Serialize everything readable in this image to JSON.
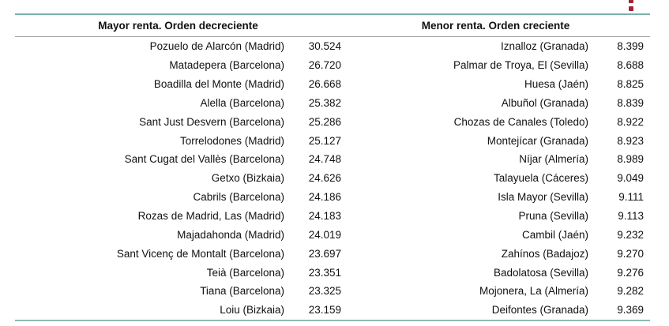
{
  "colors": {
    "rule_top": "#79b2ab",
    "rule_mid": "#9c9c9c",
    "rule_bottom": "#8ebab4",
    "menu_dots": "#a32138",
    "text": "#111111"
  },
  "menu": {
    "icon": "kebab-menu-icon"
  },
  "chart_data": {
    "type": "table",
    "tables": [
      {
        "header": "Mayor renta. Orden decreciente",
        "order": "descending",
        "rows": [
          {
            "municipality": "Pozuelo de Alarcón (Madrid)",
            "value_display": "30.524",
            "value": 30524
          },
          {
            "municipality": "Matadepera (Barcelona)",
            "value_display": "26.720",
            "value": 26720
          },
          {
            "municipality": "Boadilla del Monte (Madrid)",
            "value_display": "26.668",
            "value": 26668
          },
          {
            "municipality": "Alella (Barcelona)",
            "value_display": "25.382",
            "value": 25382
          },
          {
            "municipality": "Sant Just Desvern (Barcelona)",
            "value_display": "25.286",
            "value": 25286
          },
          {
            "municipality": "Torrelodones (Madrid)",
            "value_display": "25.127",
            "value": 25127
          },
          {
            "municipality": "Sant Cugat del Vallès (Barcelona)",
            "value_display": "24.748",
            "value": 24748
          },
          {
            "municipality": "Getxo (Bizkaia)",
            "value_display": "24.626",
            "value": 24626
          },
          {
            "municipality": "Cabrils (Barcelona)",
            "value_display": "24.186",
            "value": 24186
          },
          {
            "municipality": "Rozas de Madrid, Las (Madrid)",
            "value_display": "24.183",
            "value": 24183
          },
          {
            "municipality": "Majadahonda (Madrid)",
            "value_display": "24.019",
            "value": 24019
          },
          {
            "municipality": "Sant Vicenç de Montalt (Barcelona)",
            "value_display": "23.697",
            "value": 23697
          },
          {
            "municipality": "Teià (Barcelona)",
            "value_display": "23.351",
            "value": 23351
          },
          {
            "municipality": "Tiana (Barcelona)",
            "value_display": "23.325",
            "value": 23325
          },
          {
            "municipality": "Loiu (Bizkaia)",
            "value_display": "23.159",
            "value": 23159
          }
        ]
      },
      {
        "header": "Menor renta. Orden creciente",
        "order": "ascending",
        "rows": [
          {
            "municipality": "Iznalloz (Granada)",
            "value_display": "8.399",
            "value": 8399
          },
          {
            "municipality": "Palmar de Troya, El (Sevilla)",
            "value_display": "8.688",
            "value": 8688
          },
          {
            "municipality": "Huesa (Jaén)",
            "value_display": "8.825",
            "value": 8825
          },
          {
            "municipality": "Albuñol (Granada)",
            "value_display": "8.839",
            "value": 8839
          },
          {
            "municipality": "Chozas de Canales (Toledo)",
            "value_display": "8.922",
            "value": 8922
          },
          {
            "municipality": "Montejícar (Granada)",
            "value_display": "8.923",
            "value": 8923
          },
          {
            "municipality": "Níjar (Almería)",
            "value_display": "8.989",
            "value": 8989
          },
          {
            "municipality": "Talayuela (Cáceres)",
            "value_display": "9.049",
            "value": 9049
          },
          {
            "municipality": "Isla Mayor (Sevilla)",
            "value_display": "9.111",
            "value": 9111
          },
          {
            "municipality": "Pruna (Sevilla)",
            "value_display": "9.113",
            "value": 9113
          },
          {
            "municipality": "Cambil (Jaén)",
            "value_display": "9.232",
            "value": 9232
          },
          {
            "municipality": "Zahínos (Badajoz)",
            "value_display": "9.270",
            "value": 9270
          },
          {
            "municipality": "Badolatosa (Sevilla)",
            "value_display": "9.276",
            "value": 9276
          },
          {
            "municipality": "Mojonera, La (Almería)",
            "value_display": "9.282",
            "value": 9282
          },
          {
            "municipality": "Deifontes (Granada)",
            "value_display": "9.369",
            "value": 9369
          }
        ]
      }
    ]
  }
}
